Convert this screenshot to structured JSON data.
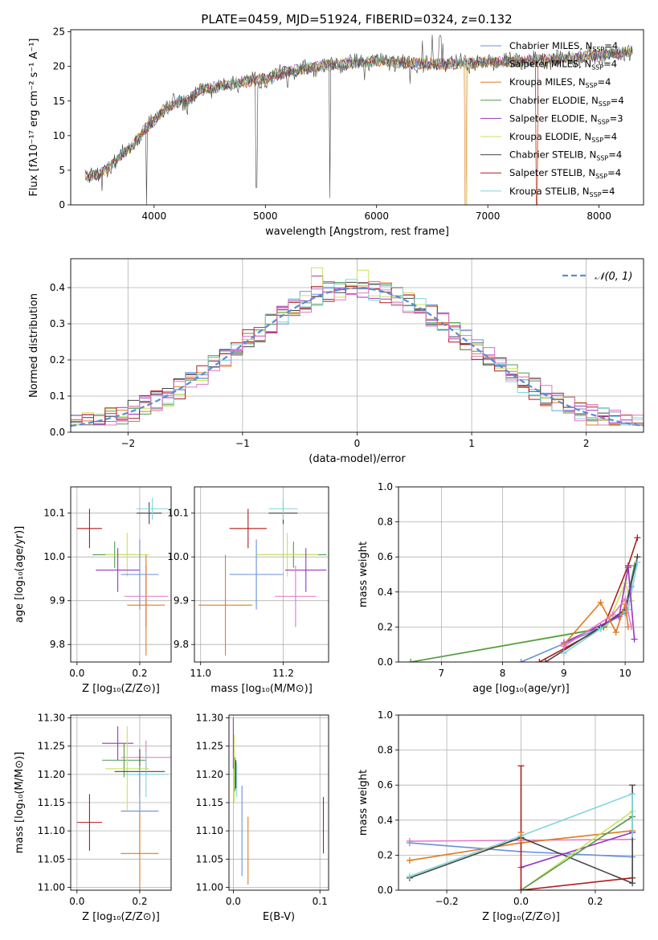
{
  "figure": {
    "title": "PLATE=0459, MJD=51924, FIBERID=0324, z=0.132"
  },
  "colors": {
    "Chabrier MILES": "#6a8fdc",
    "Salpeter MILES": "#a67c52",
    "Kroupa MILES": "#e07b20",
    "Chabrier ELODIE": "#4f9a4f",
    "Salpeter ELODIE": "#9a35c0",
    "Kroupa ELODIE": "#cfe05a",
    "Chabrier STELIB": "#454545",
    "Salpeter STELIB": "#b01c1c",
    "Kroupa STELIB": "#7fd6dc",
    "pink": "#e377c2",
    "gaussian": "#5b8bd6",
    "grid": "#b0b0b0"
  },
  "chart_data": [
    {
      "id": "spectrum",
      "type": "line",
      "title": "PLATE=0459, MJD=51924, FIBERID=0324, z=0.132",
      "xlabel": "wavelength [Angstrom, rest frame]",
      "ylabel": "Flux [fλ10⁻¹⁷ erg cm⁻² s⁻¹ A⁻¹]",
      "xlim": [
        3250,
        8400
      ],
      "ylim": [
        0,
        25.3
      ],
      "xticks": [
        4000,
        5000,
        6000,
        7000,
        8000
      ],
      "yticks": [
        0,
        5,
        10,
        15,
        20,
        25
      ],
      "grid": false,
      "legend_position": "upper-right",
      "legend": [
        {
          "name": "Chabrier MILES",
          "label": "Chabrier MILES, N_SSP=4"
        },
        {
          "name": "Salpeter MILES",
          "label": "Salpeter MILES, N_SSP=4"
        },
        {
          "name": "Kroupa MILES",
          "label": "Kroupa MILES, N_SSP=4"
        },
        {
          "name": "Chabrier ELODIE",
          "label": "Chabrier ELODIE, N_SSP=4"
        },
        {
          "name": "Salpeter ELODIE",
          "label": "Salpeter ELODIE, N_SSP=3"
        },
        {
          "name": "Kroupa ELODIE",
          "label": "Kroupa ELODIE, N_SSP=4"
        },
        {
          "name": "Chabrier STELIB",
          "label": "Chabrier STELIB, N_SSP=4"
        },
        {
          "name": "Salpeter STELIB",
          "label": "Salpeter STELIB, N_SSP=4"
        },
        {
          "name": "Kroupa STELIB",
          "label": "Kroupa STELIB, N_SSP=4"
        }
      ],
      "continuum": [
        [
          3380,
          4.2
        ],
        [
          3500,
          4.2
        ],
        [
          3600,
          5.8
        ],
        [
          3700,
          7.0
        ],
        [
          3800,
          8.5
        ],
        [
          3900,
          10.5
        ],
        [
          4000,
          12.2
        ],
        [
          4100,
          14.0
        ],
        [
          4200,
          14.8
        ],
        [
          4300,
          15.0
        ],
        [
          4400,
          16.5
        ],
        [
          4600,
          17.2
        ],
        [
          4800,
          17.8
        ],
        [
          5000,
          18.2
        ],
        [
          5200,
          19.2
        ],
        [
          5400,
          19.8
        ],
        [
          5600,
          20.2
        ],
        [
          5800,
          20.5
        ],
        [
          6000,
          20.8
        ],
        [
          6200,
          20.6
        ],
        [
          6400,
          20.4
        ],
        [
          6600,
          20.3
        ],
        [
          6800,
          20.5
        ],
        [
          7000,
          20.6
        ],
        [
          7200,
          20.7
        ],
        [
          7400,
          20.9
        ],
        [
          7600,
          21.0
        ],
        [
          7800,
          21.3
        ],
        [
          8000,
          21.6
        ],
        [
          8200,
          22.0
        ],
        [
          8300,
          22.2
        ]
      ],
      "observed_dips": [
        [
          3530,
          2.0
        ],
        [
          3930,
          0.0
        ],
        [
          4300,
          13.0
        ],
        [
          4920,
          2.5
        ],
        [
          5200,
          17.0
        ],
        [
          5580,
          1.0
        ],
        [
          5890,
          18.0
        ],
        [
          6300,
          17.5
        ],
        [
          6570,
          21.0
        ]
      ],
      "model_dropouts": [
        {
          "name": "Kroupa MILES",
          "x": 6790
        },
        {
          "name": "Kroupa ELODIE",
          "x": 6800
        },
        {
          "name": "Salpeter STELIB",
          "x": 7430
        },
        {
          "name": "Kroupa MILES",
          "x": 7435
        }
      ]
    },
    {
      "id": "residuals",
      "type": "line",
      "xlabel": "(data-model)/error",
      "ylabel": "Normed distribution",
      "xlim": [
        -2.5,
        2.5
      ],
      "ylim": [
        0,
        0.48
      ],
      "xticks": [
        -2,
        -1,
        0,
        1,
        2
      ],
      "yticks": [
        0.0,
        0.1,
        0.2,
        0.3,
        0.4
      ],
      "grid": true,
      "legend_position": "upper-right",
      "legend": [
        {
          "name": "gaussian",
          "label": "𝒩(0, 1)"
        }
      ],
      "gaussian": {
        "mean": 0,
        "sigma": 1,
        "style": "dashed"
      },
      "histograms": {
        "bins": 50,
        "range": [
          -2.5,
          2.5
        ],
        "series_count": 9,
        "peak_values": [
          0.455,
          0.448,
          0.432,
          0.42
        ]
      }
    },
    {
      "id": "age-vs-Z",
      "type": "scatter",
      "xlabel": "Z [log₁₀(Z/Z⊙)]",
      "ylabel": "age  [log₁₀(age/yr)]",
      "xlim": [
        -0.02,
        0.3
      ],
      "ylim": [
        9.76,
        10.16
      ],
      "xticks": [
        0.0,
        0.2
      ],
      "yticks": [
        9.8,
        9.9,
        10.0,
        10.1
      ],
      "grid": true,
      "points": [
        {
          "name": "Salpeter STELIB",
          "x": 0.04,
          "xerr": 0.04,
          "y": 10.065,
          "yerr": 0.045
        },
        {
          "name": "Chabrier STELIB",
          "x": 0.23,
          "xerr": 0.04,
          "y": 10.1,
          "yerr": 0.025
        },
        {
          "name": "Kroupa STELIB",
          "x": 0.24,
          "xerr": 0.05,
          "y": 10.11,
          "yerr": 0.025
        },
        {
          "name": "Chabrier ELODIE",
          "x": 0.12,
          "xerr": 0.07,
          "y": 10.005,
          "yerr": 0.03
        },
        {
          "name": "Kroupa ELODIE",
          "x": 0.16,
          "xerr": 0.07,
          "y": 10.005,
          "yerr": 0.05
        },
        {
          "name": "Salpeter ELODIE",
          "x": 0.13,
          "xerr": 0.07,
          "y": 9.97,
          "yerr": 0.05
        },
        {
          "name": "Chabrier MILES",
          "x": 0.2,
          "xerr": 0.06,
          "y": 9.96,
          "yerr": 0.08
        },
        {
          "name": "pink",
          "x": 0.22,
          "xerr": 0.07,
          "y": 9.91,
          "yerr": 0.07
        },
        {
          "name": "Kroupa MILES",
          "x": 0.22,
          "xerr": 0.06,
          "y": 9.89,
          "yerr": 0.115
        }
      ]
    },
    {
      "id": "age-vs-mass",
      "type": "scatter",
      "xlabel": "mass [log₁₀(M/M⊙)]",
      "ylabel": "",
      "xlim": [
        10.985,
        11.31
      ],
      "ylim": [
        9.76,
        10.16
      ],
      "xticks": [
        11.0,
        11.2
      ],
      "yticks": [
        9.8,
        9.9,
        10.0,
        10.1
      ],
      "grid": true,
      "points": [
        {
          "name": "Salpeter STELIB",
          "x": 11.115,
          "xerr": 0.045,
          "y": 10.065,
          "yerr": 0.045
        },
        {
          "name": "Chabrier STELIB",
          "x": 11.2,
          "xerr": 0.035,
          "y": 10.1,
          "yerr": 0.025
        },
        {
          "name": "Kroupa STELIB",
          "x": 11.2,
          "xerr": 0.035,
          "y": 10.11,
          "yerr": 0.025
        },
        {
          "name": "Chabrier ELODIE",
          "x": 11.225,
          "xerr": 0.08,
          "y": 10.005,
          "yerr": 0.03
        },
        {
          "name": "Kroupa ELODIE",
          "x": 11.21,
          "xerr": 0.075,
          "y": 10.005,
          "yerr": 0.05
        },
        {
          "name": "Salpeter ELODIE",
          "x": 11.255,
          "xerr": 0.05,
          "y": 9.97,
          "yerr": 0.05
        },
        {
          "name": "Chabrier MILES",
          "x": 11.135,
          "xerr": 0.065,
          "y": 9.96,
          "yerr": 0.08
        },
        {
          "name": "pink",
          "x": 11.23,
          "xerr": 0.05,
          "y": 9.91,
          "yerr": 0.07
        },
        {
          "name": "Kroupa MILES",
          "x": 11.06,
          "xerr": 0.065,
          "y": 9.89,
          "yerr": 0.115
        }
      ]
    },
    {
      "id": "massweight-vs-age",
      "type": "line",
      "xlabel": "age  [log₁₀(age/yr)]",
      "ylabel": "mass weight",
      "xlim": [
        6.3,
        10.3
      ],
      "ylim": [
        0,
        1.0
      ],
      "xticks": [
        7,
        8,
        9,
        10
      ],
      "yticks": [
        0.0,
        0.2,
        0.4,
        0.6,
        0.8,
        1.0
      ],
      "grid": true,
      "series": [
        {
          "name": "Kroupa ELODIE",
          "x": [
            6.5,
            9.7,
            10.0,
            10.1
          ],
          "y": [
            0.0,
            0.2,
            0.45,
            0.35
          ]
        },
        {
          "name": "Chabrier ELODIE",
          "x": [
            6.5,
            9.6,
            10.0,
            10.15
          ],
          "y": [
            0.0,
            0.19,
            0.3,
            0.55
          ]
        },
        {
          "name": "Chabrier MILES",
          "x": [
            8.3,
            9.5,
            10.0,
            10.1
          ],
          "y": [
            0.0,
            0.18,
            0.28,
            0.43
          ]
        },
        {
          "name": "Salpeter STELIB",
          "x": [
            8.6,
            9.65,
            10.05,
            10.2
          ],
          "y": [
            0.0,
            0.2,
            0.55,
            0.71
          ]
        },
        {
          "name": "Chabrier STELIB",
          "x": [
            8.7,
            9.6,
            10.0,
            10.2
          ],
          "y": [
            0.0,
            0.2,
            0.3,
            0.6
          ]
        },
        {
          "name": "Kroupa STELIB",
          "x": [
            9.0,
            9.6,
            10.05,
            10.2
          ],
          "y": [
            0.05,
            0.19,
            0.3,
            0.57
          ]
        },
        {
          "name": "Salpeter ELODIE",
          "x": [
            9.0,
            9.9,
            10.05,
            10.15
          ],
          "y": [
            0.11,
            0.26,
            0.54,
            0.13
          ]
        },
        {
          "name": "Kroupa MILES",
          "x": [
            9.0,
            9.6,
            9.85,
            10.0,
            10.05
          ],
          "y": [
            0.1,
            0.34,
            0.17,
            0.33,
            0.2
          ]
        },
        {
          "name": "pink",
          "x": [
            9.0,
            9.8,
            10.0,
            10.1
          ],
          "y": [
            0.09,
            0.27,
            0.36,
            0.2
          ]
        }
      ]
    },
    {
      "id": "mass-vs-Z",
      "type": "scatter",
      "xlabel": "Z [log₁₀(Z/Z⊙)]",
      "ylabel": "mass [log₁₀(M/M⊙)]",
      "xlim": [
        -0.02,
        0.3
      ],
      "ylim": [
        10.995,
        11.305
      ],
      "xticks": [
        0.0,
        0.2
      ],
      "yticks": [
        11.0,
        11.05,
        11.1,
        11.15,
        11.2,
        11.25,
        11.3
      ],
      "grid": true,
      "points": [
        {
          "name": "Salpeter STELIB",
          "x": 0.04,
          "xerr": 0.04,
          "y": 11.115,
          "yerr": 0.05
        },
        {
          "name": "Salpeter ELODIE",
          "x": 0.13,
          "xerr": 0.05,
          "y": 11.255,
          "yerr": 0.03
        },
        {
          "name": "Chabrier ELODIE",
          "x": 0.15,
          "xerr": 0.07,
          "y": 11.225,
          "yerr": 0.03
        },
        {
          "name": "pink",
          "x": 0.22,
          "xerr": 0.08,
          "y": 11.23,
          "yerr": 0.03
        },
        {
          "name": "Kroupa ELODIE",
          "x": 0.16,
          "xerr": 0.07,
          "y": 11.21,
          "yerr": 0.075
        },
        {
          "name": "Chabrier STELIB",
          "x": 0.2,
          "xerr": 0.08,
          "y": 11.205,
          "yerr": 0.04
        },
        {
          "name": "Kroupa STELIB",
          "x": 0.22,
          "xerr": 0.07,
          "y": 11.2,
          "yerr": 0.04
        },
        {
          "name": "Chabrier MILES",
          "x": 0.2,
          "xerr": 0.06,
          "y": 11.135,
          "yerr": 0.08
        },
        {
          "name": "Kroupa MILES",
          "x": 0.2,
          "xerr": 0.06,
          "y": 11.06,
          "yerr": 0.07
        }
      ]
    },
    {
      "id": "mass-vs-EBV",
      "type": "scatter",
      "xlabel": "E(B-V)",
      "ylabel": "",
      "xlim": [
        -0.005,
        0.11
      ],
      "ylim": [
        10.995,
        11.305
      ],
      "xticks": [
        0.0,
        0.1
      ],
      "yticks": [
        11.0,
        11.05,
        11.1,
        11.15,
        11.2,
        11.25,
        11.3
      ],
      "grid": true,
      "points": [
        {
          "name": "Salpeter ELODIE",
          "x": 0.0,
          "y": 11.255,
          "yerr": 0.045
        },
        {
          "name": "Kroupa ELODIE",
          "x": 0.001,
          "y": 11.21,
          "yerr": 0.06
        },
        {
          "name": "Chabrier ELODIE",
          "x": 0.002,
          "y": 11.2,
          "yerr": 0.03
        },
        {
          "name": "Chabrier STELIB",
          "x": 0.003,
          "y": 11.2,
          "yerr": 0.025
        },
        {
          "name": "Kroupa STELIB",
          "x": 0.004,
          "y": 11.19,
          "yerr": 0.03
        },
        {
          "name": "Chabrier MILES",
          "x": 0.01,
          "y": 11.1,
          "yerr": 0.08
        },
        {
          "name": "Kroupa MILES",
          "x": 0.017,
          "y": 11.065,
          "yerr": 0.06
        },
        {
          "name": "Salpeter STELIB",
          "x": 0.104,
          "y": 11.11,
          "yerr": 0.05
        }
      ]
    },
    {
      "id": "massweight-vs-Z",
      "type": "line",
      "xlabel": "Z [log₁₀(Z/Z⊙)]",
      "ylabel": "mass weight",
      "xlim": [
        -0.33,
        0.33
      ],
      "ylim": [
        0,
        1.0
      ],
      "xticks": [
        -0.2,
        0.0,
        0.2
      ],
      "yticks": [
        0.0,
        0.2,
        0.4,
        0.6,
        0.8,
        1.0
      ],
      "grid": true,
      "series": [
        {
          "name": "Chabrier MILES",
          "x": [
            -0.3,
            0.0,
            0.3
          ],
          "y": [
            0.27,
            0.22,
            0.19
          ]
        },
        {
          "name": "pink",
          "x": [
            -0.3,
            0.3
          ],
          "y": [
            0.28,
            0.29
          ]
        },
        {
          "name": "Kroupa MILES",
          "x": [
            -0.3,
            0.0,
            0.3
          ],
          "y": [
            0.17,
            0.27,
            0.34
          ]
        },
        {
          "name": "Chabrier STELIB",
          "x": [
            -0.3,
            0.0,
            0.3
          ],
          "y": [
            0.07,
            0.3,
            0.04
          ]
        },
        {
          "name": "Kroupa STELIB",
          "x": [
            -0.3,
            0.0,
            0.3
          ],
          "y": [
            0.08,
            0.31,
            0.55
          ]
        },
        {
          "name": "Salpeter ELODIE",
          "x": [
            0.0,
            0.3
          ],
          "y": [
            0.13,
            0.33
          ]
        },
        {
          "name": "Kroupa ELODIE",
          "x": [
            0.0,
            0.3
          ],
          "y": [
            0.0,
            0.45
          ]
        },
        {
          "name": "Salpeter STELIB",
          "x": [
            0.0,
            0.3
          ],
          "y": [
            0.0,
            0.07
          ]
        },
        {
          "name": "Chabrier ELODIE",
          "x": [
            0.0,
            0.3
          ],
          "y": [
            0.0,
            0.42
          ]
        }
      ],
      "vertical_markers": [
        {
          "name": "Salpeter STELIB",
          "x": 0.0,
          "y": [
            0.0,
            0.71
          ]
        },
        {
          "name": "Kroupa MILES",
          "x": 0.0,
          "y": [
            0.27,
            0.33
          ]
        },
        {
          "name": "Chabrier STELIB",
          "x": 0.3,
          "y": [
            0.04,
            0.6
          ]
        },
        {
          "name": "Kroupa STELIB",
          "x": 0.3,
          "y": [
            0.3,
            0.55
          ]
        }
      ]
    }
  ]
}
